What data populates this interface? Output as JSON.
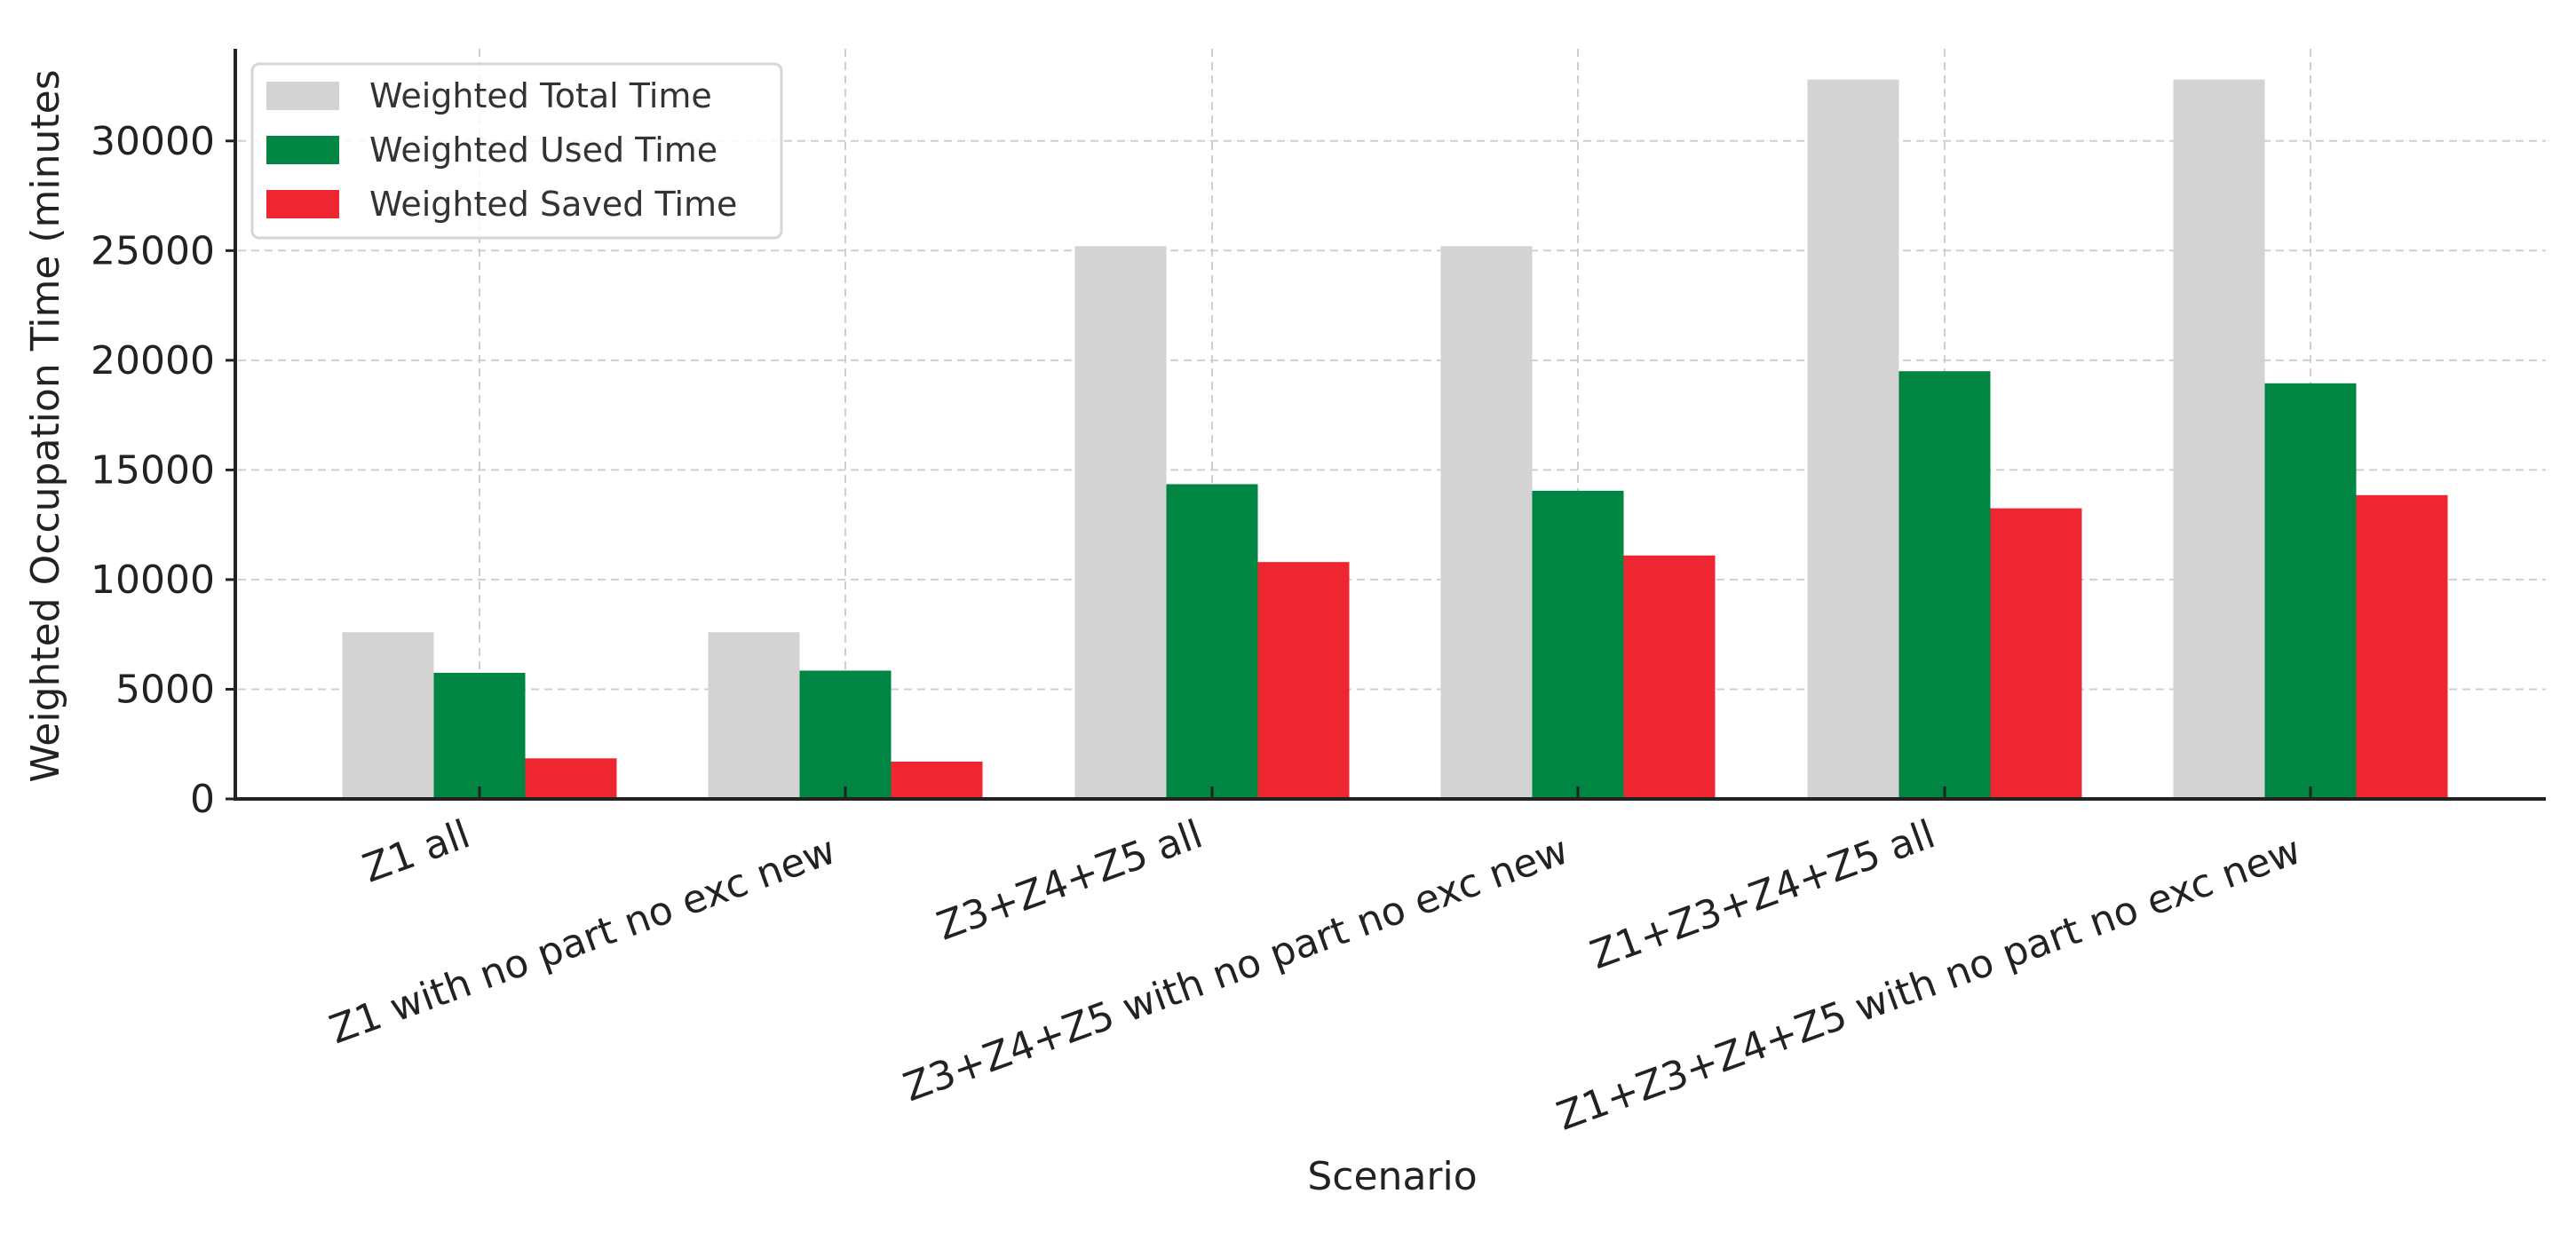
{
  "chart_data": {
    "type": "bar",
    "title": "",
    "xlabel": "Scenario",
    "ylabel": "Weighted Occupation Time (minutes",
    "categories": [
      "Z1 all",
      "Z1 with no part no exc new",
      "Z3+Z4+Z5 all",
      "Z3+Z4+Z5 with no part no exc new",
      "Z1+Z3+Z4+Z5 all",
      "Z1+Z3+Z4+Z5 with no part no exc new"
    ],
    "series": [
      {
        "name": "Weighted Total Time",
        "color": "#d3d3d3",
        "values": [
          7600,
          7600,
          25200,
          25200,
          32800,
          32800
        ]
      },
      {
        "name": "Weighted Used Time",
        "color": "#008542",
        "values": [
          5750,
          5850,
          14350,
          14050,
          19500,
          18950
        ]
      },
      {
        "name": "Weighted Saved Time",
        "color": "#ee2631",
        "values": [
          1850,
          1700,
          10800,
          11100,
          13250,
          13850
        ]
      }
    ],
    "yticks": [
      0,
      5000,
      10000,
      15000,
      20000,
      25000,
      30000
    ],
    "ylim": [
      0,
      34200
    ],
    "grid": true,
    "legend_position": "upper left",
    "xtick_rotation": 20
  }
}
